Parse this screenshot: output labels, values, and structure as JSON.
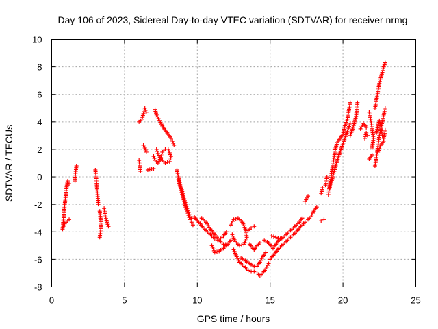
{
  "chart_data": {
    "type": "scatter",
    "title": "Day 106 of 2023, Sidereal Day-to-day VTEC variation (SDTVAR) for receiver nrmg",
    "xlabel": "GPS time / hours",
    "ylabel": "SDTVAR / TECUs",
    "xlim": [
      0,
      25
    ],
    "ylim": [
      -8,
      10
    ],
    "xticks": [
      0,
      5,
      10,
      15,
      20,
      25
    ],
    "yticks": [
      -8,
      -6,
      -4,
      -2,
      0,
      2,
      4,
      6,
      8,
      10
    ],
    "grid": true,
    "marker": "+",
    "color": "#ff0000",
    "series": [
      {
        "name": "SDTVAR",
        "segments": [
          [
            [
              0.75,
              -3.8
            ],
            [
              0.8,
              -3.2
            ],
            [
              0.85,
              -2.6
            ],
            [
              0.9,
              -2.0
            ],
            [
              0.95,
              -1.5
            ],
            [
              1.0,
              -1.0
            ],
            [
              1.05,
              -0.6
            ],
            [
              1.1,
              -0.3
            ],
            [
              1.2,
              -0.5
            ]
          ],
          [
            [
              0.8,
              -3.6
            ],
            [
              0.9,
              -3.4
            ],
            [
              1.0,
              -3.3
            ],
            [
              1.1,
              -3.2
            ],
            [
              1.2,
              -3.1
            ]
          ],
          [
            [
              1.6,
              -0.3
            ],
            [
              1.65,
              0.4
            ],
            [
              1.7,
              0.8
            ]
          ],
          [
            [
              3.0,
              0.5
            ],
            [
              3.05,
              0.0
            ],
            [
              3.1,
              -0.6
            ],
            [
              3.15,
              -1.3
            ],
            [
              3.2,
              -2.0
            ]
          ],
          [
            [
              3.3,
              -2.5
            ],
            [
              3.35,
              -3.0
            ],
            [
              3.4,
              -3.5
            ],
            [
              3.35,
              -4.0
            ],
            [
              3.3,
              -4.4
            ]
          ],
          [
            [
              3.6,
              -2.3
            ],
            [
              3.7,
              -2.9
            ],
            [
              3.8,
              -3.3
            ],
            [
              3.9,
              -3.6
            ]
          ],
          [
            [
              6.0,
              1.2
            ],
            [
              6.05,
              0.8
            ],
            [
              6.1,
              0.4
            ]
          ],
          [
            [
              6.0,
              4.0
            ],
            [
              6.2,
              4.2
            ],
            [
              6.3,
              4.6
            ],
            [
              6.4,
              5.0
            ],
            [
              6.5,
              4.7
            ]
          ],
          [
            [
              6.3,
              2.3
            ],
            [
              6.4,
              2.1
            ],
            [
              6.5,
              1.8
            ]
          ],
          [
            [
              6.6,
              0.5
            ],
            [
              7.0,
              0.6
            ]
          ],
          [
            [
              7.0,
              1.5
            ],
            [
              7.1,
              1.2
            ],
            [
              7.3,
              1.0
            ],
            [
              7.5,
              1.4
            ],
            [
              7.6,
              1.8
            ],
            [
              7.8,
              2.0
            ],
            [
              8.0,
              2.0
            ],
            [
              8.2,
              1.5
            ],
            [
              8.1,
              1.1
            ],
            [
              7.8,
              1.0
            ],
            [
              7.5,
              1.3
            ],
            [
              7.3,
              1.7
            ],
            [
              7.2,
              2.0
            ]
          ],
          [
            [
              7.1,
              4.9
            ],
            [
              7.2,
              4.5
            ],
            [
              7.4,
              4.1
            ],
            [
              7.6,
              3.7
            ],
            [
              7.8,
              3.4
            ],
            [
              8.0,
              3.1
            ],
            [
              8.2,
              2.8
            ],
            [
              8.3,
              2.6
            ],
            [
              8.4,
              2.3
            ]
          ],
          [
            [
              8.6,
              0.5
            ],
            [
              8.7,
              0.0
            ],
            [
              8.8,
              -0.4
            ],
            [
              8.9,
              -0.8
            ],
            [
              9.0,
              -1.2
            ],
            [
              9.1,
              -1.6
            ],
            [
              9.2,
              -2.0
            ],
            [
              9.3,
              -2.3
            ],
            [
              9.4,
              -2.6
            ],
            [
              9.5,
              -2.9
            ],
            [
              9.6,
              -3.0
            ]
          ],
          [
            [
              8.7,
              -0.2
            ],
            [
              8.8,
              -0.6
            ],
            [
              8.9,
              -1.0
            ],
            [
              9.0,
              -1.4
            ],
            [
              9.1,
              -1.8
            ],
            [
              9.2,
              -2.2
            ],
            [
              9.3,
              -2.5
            ],
            [
              9.4,
              -2.8
            ],
            [
              9.5,
              -3.1
            ],
            [
              9.6,
              -3.3
            ],
            [
              9.7,
              -3.5
            ]
          ],
          [
            [
              9.8,
              -2.9
            ],
            [
              10.0,
              -3.2
            ],
            [
              10.2,
              -3.4
            ],
            [
              10.4,
              -3.7
            ],
            [
              10.6,
              -3.9
            ],
            [
              10.8,
              -4.1
            ],
            [
              11.0,
              -4.3
            ],
            [
              11.2,
              -4.5
            ],
            [
              11.4,
              -4.6
            ],
            [
              11.6,
              -4.5
            ],
            [
              11.8,
              -4.3
            ],
            [
              12.0,
              -4.0
            ]
          ],
          [
            [
              10.3,
              -3.0
            ],
            [
              10.6,
              -3.3
            ],
            [
              10.9,
              -3.8
            ],
            [
              11.2,
              -4.2
            ],
            [
              11.5,
              -4.6
            ],
            [
              11.8,
              -4.9
            ],
            [
              12.1,
              -4.9
            ],
            [
              12.3,
              -4.6
            ]
          ],
          [
            [
              11.0,
              -5.0
            ],
            [
              11.2,
              -5.5
            ],
            [
              11.5,
              -5.4
            ],
            [
              11.8,
              -5.2
            ],
            [
              12.0,
              -5.0
            ]
          ],
          [
            [
              12.3,
              -3.5
            ],
            [
              12.5,
              -3.1
            ],
            [
              12.8,
              -3.0
            ],
            [
              13.1,
              -3.3
            ],
            [
              13.3,
              -3.8
            ],
            [
              13.4,
              -4.4
            ],
            [
              13.2,
              -4.9
            ],
            [
              12.9,
              -5.0
            ],
            [
              12.6,
              -4.7
            ],
            [
              12.4,
              -4.2
            ]
          ],
          [
            [
              12.5,
              -5.3
            ],
            [
              12.7,
              -5.8
            ],
            [
              12.9,
              -6.2
            ],
            [
              13.1,
              -6.4
            ],
            [
              13.3,
              -6.6
            ],
            [
              13.5,
              -6.8
            ],
            [
              13.7,
              -6.9
            ],
            [
              13.9,
              -6.9
            ],
            [
              14.1,
              -7.0
            ],
            [
              14.3,
              -7.2
            ],
            [
              14.5,
              -7.0
            ],
            [
              14.7,
              -6.7
            ],
            [
              14.9,
              -6.3
            ]
          ],
          [
            [
              13.0,
              -5.9
            ],
            [
              13.3,
              -6.1
            ],
            [
              13.6,
              -6.3
            ],
            [
              13.9,
              -6.5
            ],
            [
              14.1,
              -6.5
            ],
            [
              14.3,
              -6.2
            ],
            [
              14.5,
              -5.8
            ],
            [
              14.7,
              -5.5
            ]
          ],
          [
            [
              13.6,
              -4.9
            ],
            [
              13.9,
              -5.3
            ],
            [
              14.1,
              -5.0
            ],
            [
              14.3,
              -4.8
            ]
          ],
          [
            [
              13.5,
              -3.9
            ],
            [
              13.7,
              -3.7
            ],
            [
              13.9,
              -3.6
            ]
          ],
          [
            [
              14.6,
              -4.6
            ],
            [
              14.9,
              -4.8
            ],
            [
              15.2,
              -5.2
            ],
            [
              15.4,
              -4.9
            ],
            [
              15.6,
              -4.6
            ],
            [
              15.9,
              -4.4
            ],
            [
              16.1,
              -4.2
            ],
            [
              16.4,
              -3.9
            ],
            [
              16.7,
              -3.6
            ],
            [
              17.0,
              -3.3
            ],
            [
              17.2,
              -3.0
            ]
          ],
          [
            [
              15.0,
              -6.0
            ],
            [
              15.3,
              -5.6
            ],
            [
              15.6,
              -5.2
            ],
            [
              15.9,
              -4.9
            ],
            [
              16.2,
              -4.6
            ],
            [
              16.5,
              -4.3
            ],
            [
              16.8,
              -4.0
            ],
            [
              17.1,
              -3.6
            ],
            [
              17.4,
              -3.3
            ]
          ],
          [
            [
              15.1,
              -4.3
            ],
            [
              15.4,
              -4.4
            ],
            [
              15.7,
              -4.5
            ]
          ],
          [
            [
              17.6,
              -3.1
            ],
            [
              17.8,
              -2.9
            ],
            [
              18.0,
              -2.5
            ],
            [
              18.2,
              -2.2
            ]
          ],
          [
            [
              17.4,
              -1.8
            ],
            [
              17.6,
              -1.4
            ]
          ],
          [
            [
              18.5,
              -3.2
            ],
            [
              18.7,
              -3.1
            ]
          ],
          [
            [
              18.5,
              -1.2
            ],
            [
              18.6,
              -0.8
            ]
          ],
          [
            [
              18.8,
              -0.6
            ],
            [
              18.9,
              0.0
            ]
          ],
          [
            [
              19.0,
              -1.3
            ],
            [
              19.1,
              -0.6
            ],
            [
              19.2,
              0.1
            ],
            [
              19.3,
              0.8
            ],
            [
              19.4,
              1.5
            ],
            [
              19.5,
              2.1
            ],
            [
              19.6,
              2.5
            ],
            [
              19.8,
              2.8
            ],
            [
              20.0,
              3.1
            ],
            [
              20.1,
              3.6
            ],
            [
              20.3,
              4.2
            ],
            [
              20.4,
              4.8
            ],
            [
              20.5,
              5.4
            ]
          ],
          [
            [
              19.1,
              -0.8
            ],
            [
              19.3,
              0.0
            ],
            [
              19.5,
              0.8
            ],
            [
              19.7,
              1.5
            ],
            [
              19.9,
              2.1
            ],
            [
              20.1,
              2.7
            ],
            [
              20.3,
              3.3
            ],
            [
              20.5,
              3.9
            ]
          ],
          [
            [
              20.5,
              3.0
            ],
            [
              20.7,
              3.6
            ],
            [
              20.9,
              4.4
            ],
            [
              21.0,
              5.4
            ]
          ],
          [
            [
              21.2,
              3.5
            ],
            [
              21.4,
              3.9
            ],
            [
              21.6,
              3.6
            ]
          ],
          [
            [
              21.5,
              2.8
            ],
            [
              21.6,
              3.2
            ],
            [
              21.7,
              3.0
            ]
          ],
          [
            [
              21.8,
              4.7
            ],
            [
              21.9,
              4.2
            ],
            [
              22.0,
              3.5
            ],
            [
              22.1,
              2.8
            ],
            [
              22.0,
              2.1
            ]
          ],
          [
            [
              21.8,
              1.3
            ],
            [
              22.0,
              1.6
            ]
          ],
          [
            [
              22.2,
              0.8
            ],
            [
              22.3,
              1.4
            ],
            [
              22.4,
              2.2
            ],
            [
              22.5,
              3.0
            ],
            [
              22.6,
              3.5
            ],
            [
              22.7,
              4.0
            ],
            [
              22.8,
              4.5
            ],
            [
              22.9,
              5.0
            ]
          ],
          [
            [
              22.2,
              5.0
            ],
            [
              22.3,
              5.6
            ],
            [
              22.4,
              6.2
            ],
            [
              22.5,
              6.8
            ],
            [
              22.6,
              7.2
            ],
            [
              22.7,
              7.6
            ],
            [
              22.8,
              8.0
            ],
            [
              22.9,
              8.3
            ]
          ],
          [
            [
              22.3,
              3.2
            ],
            [
              22.4,
              3.7
            ],
            [
              22.5,
              4.1
            ],
            [
              22.6,
              3.6
            ],
            [
              22.7,
              3.0
            ],
            [
              22.8,
              2.8
            ],
            [
              22.9,
              3.4
            ]
          ],
          [
            [
              22.4,
              1.8
            ],
            [
              22.6,
              2.3
            ],
            [
              22.8,
              2.6
            ]
          ]
        ]
      }
    ]
  }
}
